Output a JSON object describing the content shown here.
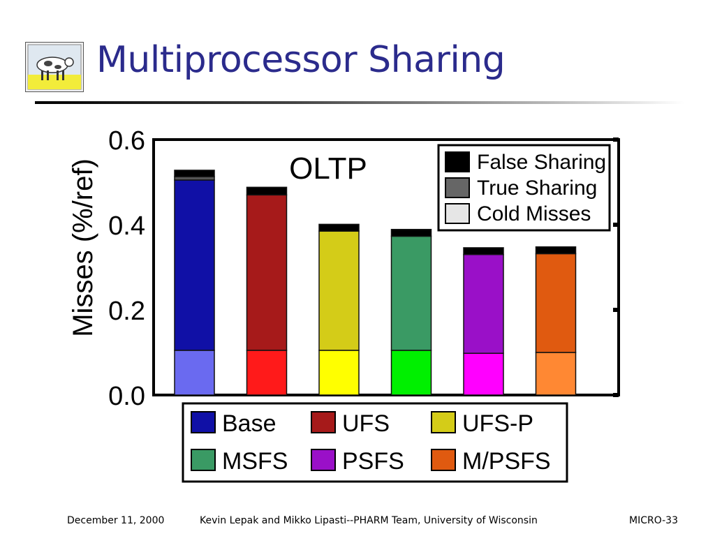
{
  "slide": {
    "title": "Multiprocessor Sharing",
    "logo_icon": "cow-painting-icon"
  },
  "footer": {
    "date": "December 11, 2000",
    "credit": "Kevin Lepak and Mikko Lipasti--PHARM Team, University of Wisconsin",
    "conference": "MICRO-33"
  },
  "chart_data": {
    "type": "bar",
    "stacked": true,
    "title": "OLTP",
    "xlabel": "",
    "ylabel": "Misses (%/ref)",
    "ylim": [
      0,
      0.6
    ],
    "yticks": [
      "0.0",
      "0.2",
      "0.4",
      "0.6"
    ],
    "categories": [
      "Base",
      "UFS",
      "UFS-P",
      "MSFS",
      "PSFS",
      "M/PSFS"
    ],
    "colors": {
      "false_sharing": "#000000",
      "true_sharing": "#555555",
      "cold_misses": [
        "#6a6af0",
        "#ff1a1a",
        "#ffff00",
        "#00f000",
        "#ff00ff",
        "#ff8833"
      ],
      "sharing": [
        "#1010a6",
        "#a61a1a",
        "#d4cc18",
        "#3a9a64",
        "#9a10c8",
        "#e05a10"
      ]
    },
    "series": [
      {
        "name": "Cold Misses",
        "values": [
          0.105,
          0.105,
          0.105,
          0.105,
          0.098,
          0.1
        ]
      },
      {
        "name": "Sharing",
        "values": [
          0.4,
          0.365,
          0.28,
          0.268,
          0.232,
          0.232
        ]
      },
      {
        "name": "True Sharing",
        "values": [
          0.008,
          0.0,
          0.0,
          0.0,
          0.0,
          0.0
        ]
      },
      {
        "name": "False Sharing",
        "values": [
          0.015,
          0.018,
          0.016,
          0.016,
          0.016,
          0.016
        ]
      }
    ],
    "legend_segments": {
      "placement": "top-right",
      "entries": [
        {
          "name": "False Sharing",
          "color": "#000000"
        },
        {
          "name": "True Sharing",
          "color": "#666666"
        },
        {
          "name": "Cold Misses",
          "color": "#e6e6e6"
        }
      ]
    },
    "legend_schemes": {
      "placement": "bottom",
      "entries": [
        {
          "name": "Base",
          "color": "#1010a6"
        },
        {
          "name": "UFS",
          "color": "#a61a1a"
        },
        {
          "name": "UFS-P",
          "color": "#d4cc18"
        },
        {
          "name": "MSFS",
          "color": "#3a9a64"
        },
        {
          "name": "PSFS",
          "color": "#9a10c8"
        },
        {
          "name": "M/PSFS",
          "color": "#e05a10"
        }
      ]
    }
  }
}
